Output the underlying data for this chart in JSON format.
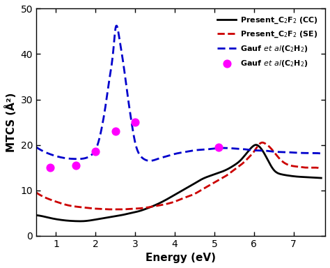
{
  "title": "",
  "xlabel": "Energy (eV)",
  "ylabel": "MTCS (Å²)",
  "xlim": [
    0.5,
    7.8
  ],
  "ylim": [
    0,
    50
  ],
  "xticks": [
    1,
    2,
    3,
    4,
    5,
    6,
    7
  ],
  "yticks": [
    0,
    10,
    20,
    30,
    40,
    50
  ],
  "cc_x": [
    0.5,
    0.7,
    0.9,
    1.1,
    1.3,
    1.5,
    1.7,
    1.9,
    2.1,
    2.3,
    2.5,
    2.7,
    2.9,
    3.1,
    3.3,
    3.5,
    3.8,
    4.0,
    4.2,
    4.5,
    4.7,
    4.9,
    5.1,
    5.3,
    5.5,
    5.65,
    5.8,
    5.95,
    6.05,
    6.15,
    6.3,
    6.5,
    6.7,
    6.9,
    7.1,
    7.3,
    7.5,
    7.7
  ],
  "cc_y": [
    4.5,
    4.2,
    3.8,
    3.5,
    3.3,
    3.2,
    3.2,
    3.4,
    3.7,
    4.0,
    4.3,
    4.6,
    5.0,
    5.4,
    6.0,
    6.7,
    8.0,
    9.0,
    10.0,
    11.5,
    12.5,
    13.2,
    13.8,
    14.5,
    15.5,
    16.5,
    18.0,
    19.5,
    20.0,
    19.5,
    17.5,
    14.5,
    13.5,
    13.2,
    13.0,
    12.9,
    12.8,
    12.7
  ],
  "se_x": [
    0.5,
    0.7,
    0.9,
    1.1,
    1.3,
    1.5,
    1.7,
    1.9,
    2.1,
    2.3,
    2.5,
    2.7,
    2.9,
    3.1,
    3.3,
    3.5,
    3.8,
    4.0,
    4.2,
    4.5,
    4.7,
    4.9,
    5.1,
    5.3,
    5.5,
    5.7,
    5.9,
    6.0,
    6.1,
    6.2,
    6.3,
    6.4,
    6.5,
    6.7,
    6.9,
    7.1,
    7.3,
    7.5,
    7.7
  ],
  "se_y": [
    9.5,
    8.5,
    7.8,
    7.2,
    6.7,
    6.4,
    6.2,
    6.0,
    5.9,
    5.8,
    5.8,
    5.8,
    5.9,
    6.0,
    6.2,
    6.5,
    7.0,
    7.5,
    8.2,
    9.2,
    10.2,
    11.2,
    12.2,
    13.2,
    14.5,
    15.8,
    17.5,
    18.5,
    19.8,
    20.5,
    20.2,
    19.5,
    18.5,
    16.5,
    15.5,
    15.2,
    15.0,
    15.0,
    14.8
  ],
  "gauf_x": [
    0.5,
    0.7,
    0.9,
    1.1,
    1.3,
    1.5,
    1.7,
    1.9,
    2.05,
    2.15,
    2.25,
    2.35,
    2.45,
    2.5,
    2.6,
    2.7,
    2.8,
    2.9,
    3.0,
    3.1,
    3.2,
    3.4,
    3.6,
    3.8,
    4.0,
    4.3,
    4.5,
    4.8,
    5.0,
    5.3,
    5.5,
    5.8,
    6.0,
    6.3,
    6.5,
    6.8,
    7.0,
    7.3,
    7.5,
    7.7
  ],
  "gauf_y": [
    19.5,
    18.5,
    17.8,
    17.3,
    17.0,
    16.9,
    17.0,
    17.8,
    20.0,
    23.5,
    28.5,
    34.5,
    41.0,
    45.5,
    43.5,
    38.0,
    31.5,
    25.5,
    20.5,
    18.0,
    17.0,
    16.5,
    17.0,
    17.5,
    18.0,
    18.5,
    18.8,
    19.0,
    19.2,
    19.3,
    19.2,
    19.0,
    18.8,
    18.7,
    18.5,
    18.4,
    18.3,
    18.2,
    18.2,
    18.1
  ],
  "dots_x": [
    0.85,
    1.5,
    2.0,
    2.5,
    3.0,
    5.1
  ],
  "dots_y": [
    15.0,
    15.5,
    18.5,
    23.0,
    25.0,
    19.5
  ],
  "cc_color": "#000000",
  "se_color": "#cc0000",
  "gauf_color": "#0000cc",
  "dots_color": "#ff00ff",
  "legend_labels": [
    "Present_C$_2$F$_2$ (CC)",
    "Present_C$_2$F$_2$ (SE)",
    "Gauf $\\it{et}$ $\\it{al}$(C$_2$H$_2$)",
    "Gauf $\\it{et}$ $\\it{al}$(C$_2$H$_2$)"
  ]
}
